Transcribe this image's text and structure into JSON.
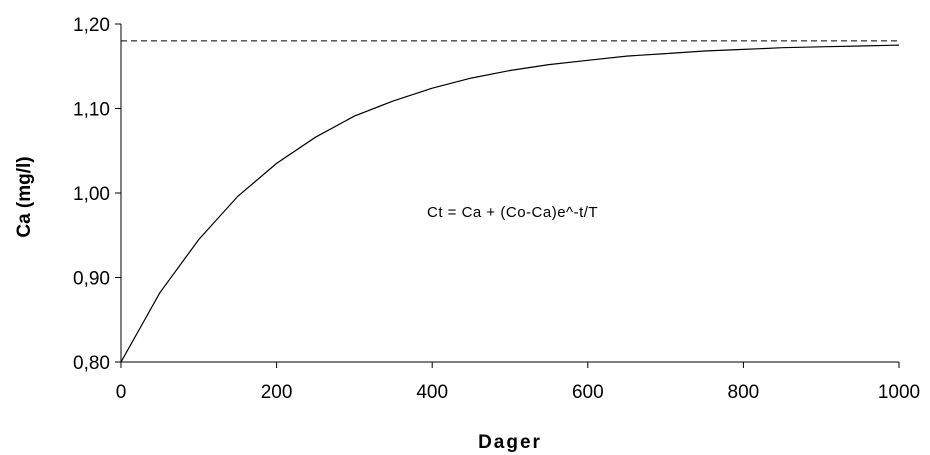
{
  "chart_data": {
    "type": "line",
    "title": "",
    "xlabel": "Dager",
    "ylabel": "Ca (mg/l)",
    "xlim": [
      0,
      1000
    ],
    "ylim": [
      0.8,
      1.2
    ],
    "x_ticks": [
      0,
      200,
      400,
      600,
      800,
      1000
    ],
    "x_tick_labels": [
      "0",
      "200",
      "400",
      "600",
      "800",
      "1000"
    ],
    "y_ticks": [
      0.8,
      0.9,
      1.0,
      1.1,
      1.2
    ],
    "y_tick_labels": [
      "0,80",
      "0,90",
      "1,00",
      "1,10",
      "1,20"
    ],
    "grid": false,
    "annotation": "Ct = Ca + (Co-Ca)e^-t/T",
    "asymptote": {
      "y": 1.18,
      "style": "dashed"
    },
    "series": [
      {
        "x": [
          0,
          50,
          100,
          150,
          200,
          250,
          300,
          350,
          400,
          450,
          500,
          550,
          600,
          650,
          700,
          750,
          800,
          850,
          900,
          950,
          1000
        ],
        "values": [
          0.8,
          0.882,
          0.945,
          0.996,
          1.035,
          1.066,
          1.091,
          1.109,
          1.124,
          1.136,
          1.145,
          1.152,
          1.157,
          1.162,
          1.165,
          1.168,
          1.17,
          1.172,
          1.173,
          1.174,
          1.175
        ]
      }
    ]
  }
}
